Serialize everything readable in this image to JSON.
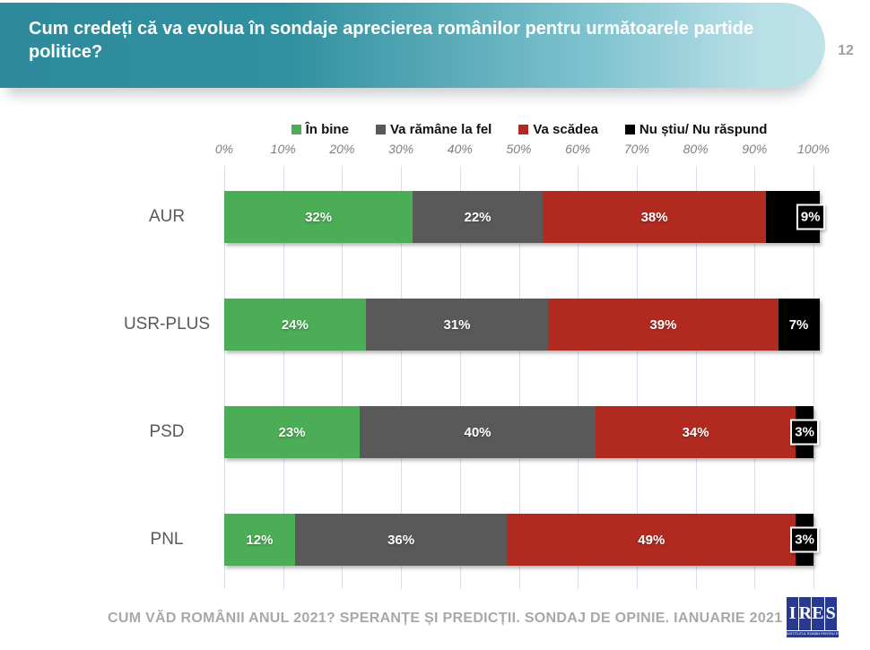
{
  "header": {
    "title": "Cum credeți că va evolua în sondaje aprecierea românilor pentru următoarele partide politice?",
    "page_number": "12"
  },
  "chart_data": {
    "type": "bar",
    "orientation": "horizontal-stacked",
    "categories": [
      "AUR",
      "USR-PLUS",
      "PSD",
      "PNL"
    ],
    "series": [
      {
        "name": "În bine",
        "color": "#4bad55",
        "values": [
          32,
          24,
          23,
          12
        ]
      },
      {
        "name": "Va rămâne la fel",
        "color": "#595959",
        "values": [
          22,
          31,
          40,
          36
        ]
      },
      {
        "name": "Va scădea",
        "color": "#b02a20",
        "values": [
          38,
          39,
          34,
          49
        ]
      },
      {
        "name": "Nu știu/ Nu răspund",
        "color": "#000000",
        "values": [
          9,
          7,
          3,
          3
        ]
      }
    ],
    "value_suffix": "%",
    "ndr_label_callout": [
      true,
      false,
      true,
      true
    ],
    "x_axis": {
      "min": 0,
      "max": 100,
      "ticks": [
        "0%",
        "10%",
        "20%",
        "30%",
        "40%",
        "50%",
        "60%",
        "70%",
        "80%",
        "90%",
        "100%"
      ]
    },
    "grid": true,
    "legend_position": "top"
  },
  "footer": {
    "source_text": "CUM VĂD ROMÂNII ANUL 2021? SPERANȚE ȘI PREDICȚII. SONDAJ DE OPINIE. IANUARIE 2021",
    "logo": {
      "letters": [
        "I",
        "R",
        "E",
        "S"
      ],
      "tagline": "INSTITUTUL ROMÂN PENTRU EVALUARE ȘI STRATEGIE",
      "color": "#283a8f"
    }
  }
}
